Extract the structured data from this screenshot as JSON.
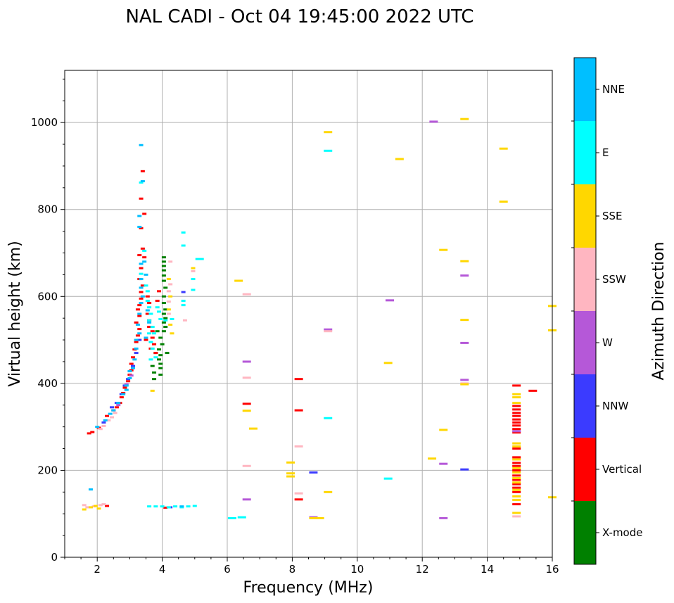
{
  "chart_data": {
    "type": "scatter",
    "title": "NAL CADI - Oct 04 19:45:00 2022 UTC",
    "xlabel": "Frequency (MHz)",
    "ylabel": "Virtual height (km)",
    "xlim": [
      1,
      16
    ],
    "ylim": [
      0,
      1120
    ],
    "x_ticks": [
      2,
      4,
      6,
      8,
      10,
      12,
      14,
      16
    ],
    "y_ticks": [
      0,
      200,
      400,
      600,
      800,
      1000
    ],
    "grid": true,
    "colorbar": {
      "label": "Azimuth Direction",
      "categories": [
        "X-mode",
        "Vertical",
        "NNW",
        "W",
        "SSW",
        "SSE",
        "E",
        "NNE"
      ],
      "colors": [
        "#008000",
        "#ff0000",
        "#3b3bff",
        "#b558d8",
        "#ffb6c1",
        "#ffd700",
        "#00ffff",
        "#00bfff"
      ]
    },
    "series": [
      {
        "name": "X-mode",
        "points": [
          [
            4.05,
            690
          ],
          [
            4.05,
            680
          ],
          [
            4.05,
            670
          ],
          [
            4.05,
            660
          ],
          [
            4.05,
            648
          ],
          [
            4.05,
            636
          ],
          [
            4.1,
            620
          ],
          [
            4.05,
            600
          ],
          [
            4.05,
            585
          ],
          [
            4.1,
            570
          ],
          [
            4.05,
            560
          ],
          [
            4.1,
            550
          ],
          [
            4.05,
            540
          ],
          [
            4.1,
            530
          ],
          [
            4.05,
            520
          ],
          [
            3.95,
            505
          ],
          [
            4.0,
            490
          ],
          [
            3.9,
            478
          ],
          [
            3.95,
            465
          ],
          [
            3.9,
            455
          ],
          [
            3.95,
            445
          ],
          [
            3.95,
            435
          ],
          [
            3.95,
            420
          ],
          [
            3.7,
            440
          ],
          [
            3.75,
            425
          ],
          [
            3.75,
            410
          ],
          [
            3.8,
            470
          ],
          [
            3.85,
            520
          ],
          [
            4.15,
            470
          ]
        ]
      },
      {
        "name": "Vertical",
        "points": [
          [
            1.75,
            285
          ],
          [
            1.85,
            288
          ],
          [
            2.05,
            298
          ],
          [
            2.3,
            325
          ],
          [
            2.5,
            338
          ],
          [
            2.6,
            345
          ],
          [
            2.7,
            355
          ],
          [
            2.75,
            368
          ],
          [
            2.8,
            378
          ],
          [
            2.85,
            390
          ],
          [
            2.95,
            405
          ],
          [
            3.0,
            420
          ],
          [
            3.05,
            430
          ],
          [
            3.05,
            445
          ],
          [
            3.1,
            460
          ],
          [
            3.15,
            478
          ],
          [
            3.2,
            495
          ],
          [
            3.25,
            510
          ],
          [
            3.3,
            525
          ],
          [
            3.2,
            540
          ],
          [
            3.3,
            555
          ],
          [
            3.25,
            570
          ],
          [
            3.3,
            580
          ],
          [
            3.35,
            595
          ],
          [
            3.35,
            610
          ],
          [
            3.4,
            625
          ],
          [
            3.3,
            640
          ],
          [
            3.35,
            665
          ],
          [
            3.3,
            695
          ],
          [
            3.45,
            690
          ],
          [
            3.4,
            710
          ],
          [
            3.35,
            757
          ],
          [
            3.45,
            790
          ],
          [
            3.35,
            825
          ],
          [
            3.4,
            888
          ],
          [
            3.55,
            600
          ],
          [
            3.6,
            585
          ],
          [
            3.55,
            560
          ],
          [
            3.6,
            545
          ],
          [
            3.6,
            530
          ],
          [
            3.7,
            520
          ],
          [
            3.7,
            505
          ],
          [
            3.75,
            490
          ],
          [
            3.8,
            470
          ],
          [
            3.9,
            612
          ],
          [
            3.85,
            590
          ],
          [
            3.5,
            500
          ],
          [
            3.65,
            480
          ],
          [
            6.6,
            353
          ],
          [
            8.2,
            410
          ],
          [
            8.2,
            338
          ],
          [
            8.2,
            133
          ],
          [
            14.9,
            395
          ],
          [
            15.4,
            383
          ],
          [
            14.9,
            348
          ],
          [
            14.9,
            340
          ],
          [
            14.9,
            332
          ],
          [
            14.9,
            325
          ],
          [
            14.9,
            317
          ],
          [
            14.9,
            310
          ],
          [
            14.9,
            303
          ],
          [
            14.9,
            295
          ],
          [
            14.9,
            287
          ],
          [
            14.9,
            250
          ],
          [
            14.9,
            230
          ],
          [
            14.9,
            217
          ],
          [
            14.9,
            210
          ],
          [
            14.9,
            200
          ],
          [
            14.9,
            188
          ],
          [
            14.9,
            178
          ],
          [
            14.9,
            168
          ],
          [
            14.9,
            160
          ],
          [
            14.9,
            150
          ],
          [
            14.9,
            122
          ],
          [
            4.1,
            114
          ],
          [
            2.3,
            118
          ]
        ]
      },
      {
        "name": "NNW",
        "points": [
          [
            2.45,
            345
          ],
          [
            2.6,
            355
          ],
          [
            2.75,
            375
          ],
          [
            2.85,
            395
          ],
          [
            2.95,
            410
          ],
          [
            3.1,
            440
          ],
          [
            3.2,
            470
          ],
          [
            3.3,
            500
          ],
          [
            2.2,
            310
          ],
          [
            4.65,
            610
          ],
          [
            8.65,
            195
          ],
          [
            13.3,
            202
          ],
          [
            4.25,
            115
          ]
        ]
      },
      {
        "name": "W",
        "points": [
          [
            2.65,
            350
          ],
          [
            2.9,
            398
          ],
          [
            3.05,
            418
          ],
          [
            6.6,
            450
          ],
          [
            6.6,
            133
          ],
          [
            8.65,
            92
          ],
          [
            9.1,
            524
          ],
          [
            11.0,
            591
          ],
          [
            12.35,
            1002
          ],
          [
            12.65,
            215
          ],
          [
            12.65,
            90
          ],
          [
            13.3,
            648
          ],
          [
            13.3,
            493
          ],
          [
            13.3,
            408
          ],
          [
            14.9,
            290
          ]
        ]
      },
      {
        "name": "SSW",
        "points": [
          [
            2.1,
            295
          ],
          [
            2.2,
            302
          ],
          [
            2.35,
            315
          ],
          [
            2.45,
            322
          ],
          [
            2.55,
            332
          ],
          [
            1.6,
            120
          ],
          [
            1.7,
            115
          ],
          [
            1.9,
            117
          ],
          [
            2.1,
            120
          ],
          [
            2.2,
            122
          ],
          [
            4.25,
            628
          ],
          [
            4.2,
            612
          ],
          [
            4.2,
            588
          ],
          [
            4.2,
            560
          ],
          [
            4.7,
            545
          ],
          [
            4.95,
            658
          ],
          [
            6.6,
            605
          ],
          [
            6.6,
            413
          ],
          [
            6.6,
            210
          ],
          [
            8.2,
            255
          ],
          [
            8.2,
            147
          ],
          [
            9.1,
            520
          ],
          [
            13.3,
            400
          ],
          [
            14.9,
            94
          ],
          [
            4.25,
            680
          ]
        ]
      },
      {
        "name": "SSE",
        "points": [
          [
            1.6,
            110
          ],
          [
            1.8,
            115
          ],
          [
            1.95,
            118
          ],
          [
            2.05,
            112
          ],
          [
            3.7,
            383
          ],
          [
            4.2,
            640
          ],
          [
            4.25,
            600
          ],
          [
            4.2,
            570
          ],
          [
            4.25,
            535
          ],
          [
            4.3,
            515
          ],
          [
            4.95,
            665
          ],
          [
            6.35,
            636
          ],
          [
            6.6,
            337
          ],
          [
            6.8,
            296
          ],
          [
            7.95,
            218
          ],
          [
            7.95,
            193
          ],
          [
            7.95,
            186
          ],
          [
            8.65,
            90
          ],
          [
            8.85,
            90
          ],
          [
            9.1,
            978
          ],
          [
            9.1,
            150
          ],
          [
            10.95,
            447
          ],
          [
            11.3,
            916
          ],
          [
            12.3,
            227
          ],
          [
            12.65,
            707
          ],
          [
            12.65,
            293
          ],
          [
            13.3,
            1008
          ],
          [
            13.3,
            681
          ],
          [
            13.3,
            546
          ],
          [
            13.3,
            398
          ],
          [
            14.5,
            940
          ],
          [
            14.5,
            818
          ],
          [
            14.9,
            375
          ],
          [
            14.9,
            368
          ],
          [
            14.9,
            355
          ],
          [
            14.9,
            262
          ],
          [
            14.9,
            255
          ],
          [
            14.9,
            225
          ],
          [
            14.9,
            205
          ],
          [
            14.9,
            195
          ],
          [
            14.9,
            182
          ],
          [
            14.9,
            172
          ],
          [
            14.9,
            155
          ],
          [
            14.9,
            140
          ],
          [
            14.9,
            132
          ],
          [
            14.9,
            102
          ],
          [
            16.0,
            578
          ],
          [
            16.0,
            522
          ],
          [
            16.0,
            138
          ]
        ]
      },
      {
        "name": "E",
        "points": [
          [
            3.55,
            590
          ],
          [
            3.6,
            575
          ],
          [
            3.65,
            560
          ],
          [
            3.6,
            545
          ],
          [
            3.7,
            530
          ],
          [
            3.75,
            515
          ],
          [
            3.65,
            495
          ],
          [
            3.7,
            480
          ],
          [
            3.8,
            460
          ],
          [
            3.65,
            455
          ],
          [
            3.85,
            575
          ],
          [
            3.9,
            565
          ],
          [
            3.95,
            548
          ],
          [
            4.1,
            545
          ],
          [
            4.3,
            548
          ],
          [
            4.65,
            747
          ],
          [
            4.65,
            717
          ],
          [
            4.65,
            590
          ],
          [
            4.65,
            580
          ],
          [
            4.95,
            640
          ],
          [
            4.95,
            615
          ],
          [
            5.15,
            686
          ],
          [
            3.55,
            612
          ],
          [
            3.35,
            652
          ],
          [
            3.45,
            705
          ],
          [
            3.35,
            862
          ],
          [
            6.15,
            90
          ],
          [
            6.45,
            92
          ],
          [
            9.1,
            935
          ],
          [
            9.1,
            320
          ],
          [
            10.95,
            181
          ],
          [
            3.6,
            117
          ],
          [
            3.8,
            117
          ],
          [
            4.0,
            117
          ],
          [
            4.2,
            115
          ],
          [
            4.4,
            117
          ],
          [
            4.6,
            115
          ],
          [
            4.8,
            117
          ],
          [
            5.0,
            118
          ],
          [
            3.5,
            625
          ],
          [
            3.6,
            515
          ]
        ]
      },
      {
        "name": "NNE",
        "points": [
          [
            2.0,
            300
          ],
          [
            2.25,
            315
          ],
          [
            2.4,
            330
          ],
          [
            2.5,
            338
          ],
          [
            2.65,
            355
          ],
          [
            2.8,
            375
          ],
          [
            2.9,
            385
          ],
          [
            2.9,
            395
          ],
          [
            3.0,
            412
          ],
          [
            3.0,
            428
          ],
          [
            3.1,
            435
          ],
          [
            3.15,
            455
          ],
          [
            3.2,
            480
          ],
          [
            3.2,
            500
          ],
          [
            3.3,
            515
          ],
          [
            3.25,
            535
          ],
          [
            3.3,
            560
          ],
          [
            3.35,
            585
          ],
          [
            3.4,
            600
          ],
          [
            3.35,
            620
          ],
          [
            3.35,
            640
          ],
          [
            3.35,
            675
          ],
          [
            3.3,
            760
          ],
          [
            3.3,
            785
          ],
          [
            3.35,
            948
          ],
          [
            3.4,
            865
          ],
          [
            3.45,
            680
          ],
          [
            3.5,
            650
          ],
          [
            3.55,
            568
          ],
          [
            3.6,
            540
          ],
          [
            1.8,
            156
          ],
          [
            4.6,
            117
          ],
          [
            3.5,
            505
          ]
        ]
      }
    ]
  }
}
